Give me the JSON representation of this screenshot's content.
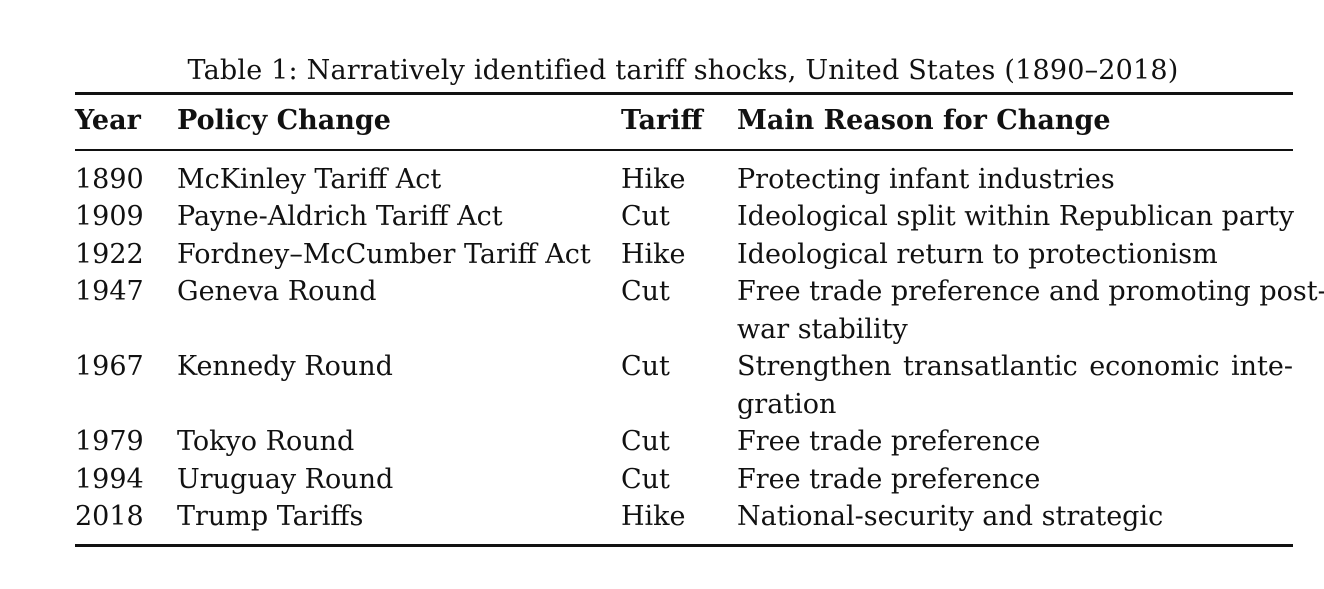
{
  "caption": "Table 1: Narratively identified tariff shocks, United States (1890–2018)",
  "table": {
    "headers": {
      "year": "Year",
      "policy": "Policy Change",
      "tariff": "Tariff",
      "reason": "Main Reason for Change"
    },
    "rows": [
      {
        "year": "1890",
        "policy": "McKinley Tariff Act",
        "tariff": "Hike",
        "reason_lines": [
          "Protecting infant industries"
        ]
      },
      {
        "year": "1909",
        "policy": "Payne-Aldrich Tariff Act",
        "tariff": "Cut",
        "reason_lines": [
          "Ideological split within Republican party"
        ]
      },
      {
        "year": "1922",
        "policy": "Fordney–McCumber Tariff Act",
        "tariff": "Hike",
        "reason_lines": [
          "Ideological return to protectionism"
        ]
      },
      {
        "year": "1947",
        "policy": "Geneva Round",
        "tariff": "Cut",
        "reason_lines": [
          "Free trade preference and promoting post-",
          "war stability"
        ]
      },
      {
        "year": "1967",
        "policy": "Kennedy Round",
        "tariff": "Cut",
        "reason_lines": [
          "Strengthen transatlantic economic inte-",
          "gration"
        ]
      },
      {
        "year": "1979",
        "policy": "Tokyo Round",
        "tariff": "Cut",
        "reason_lines": [
          "Free trade preference"
        ]
      },
      {
        "year": "1994",
        "policy": "Uruguay Round",
        "tariff": "Cut",
        "reason_lines": [
          "Free trade preference"
        ]
      },
      {
        "year": "2018",
        "policy": "Trump Tariffs",
        "tariff": "Hike",
        "reason_lines": [
          "National-security and strategic"
        ]
      }
    ]
  }
}
